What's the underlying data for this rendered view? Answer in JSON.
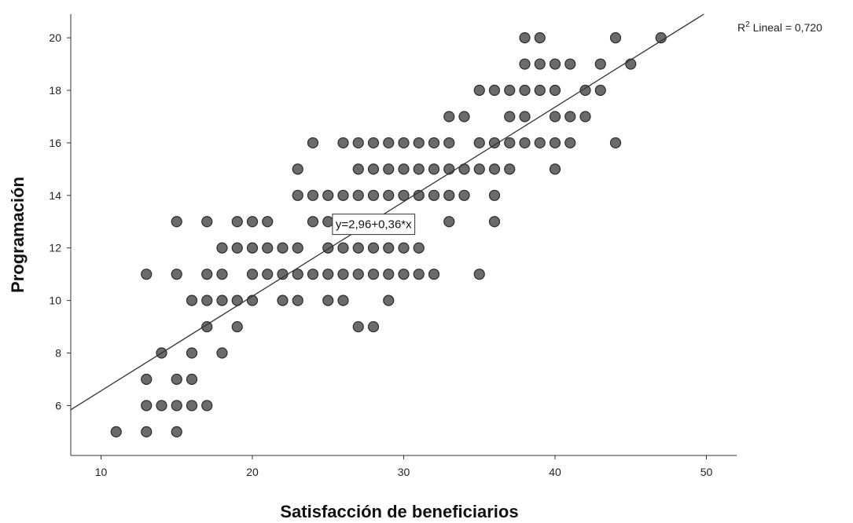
{
  "chart_data": {
    "type": "scatter",
    "title": "",
    "xlabel": "Satisfacción de beneficiarios",
    "ylabel": "Programación",
    "xlim": [
      8,
      52
    ],
    "ylim": [
      4.1,
      20.9
    ],
    "x_ticks": [
      10,
      20,
      30,
      40,
      50
    ],
    "y_ticks": [
      6,
      8,
      10,
      12,
      14,
      16,
      18,
      20
    ],
    "grid": false,
    "marker_color": "#6b6b6b",
    "marker_edge": "#2b2b2b",
    "fit_line": {
      "intercept": 2.96,
      "slope": 0.36,
      "equation_label": "y=2,96+0,36*x",
      "r2_prefix": "R",
      "r2_sup": "2",
      "r2_suffix": " Lineal = 0,720"
    },
    "points": [
      [
        11,
        5
      ],
      [
        13,
        5
      ],
      [
        15,
        5
      ],
      [
        13,
        6
      ],
      [
        14,
        6
      ],
      [
        15,
        6
      ],
      [
        16,
        6
      ],
      [
        17,
        6
      ],
      [
        13,
        7
      ],
      [
        15,
        7
      ],
      [
        16,
        7
      ],
      [
        14,
        8
      ],
      [
        16,
        8
      ],
      [
        18,
        8
      ],
      [
        17,
        9
      ],
      [
        19,
        9
      ],
      [
        27,
        9
      ],
      [
        28,
        9
      ],
      [
        16,
        10
      ],
      [
        17,
        10
      ],
      [
        18,
        10
      ],
      [
        19,
        10
      ],
      [
        20,
        10
      ],
      [
        22,
        10
      ],
      [
        23,
        10
      ],
      [
        25,
        10
      ],
      [
        26,
        10
      ],
      [
        29,
        10
      ],
      [
        13,
        11
      ],
      [
        15,
        11
      ],
      [
        17,
        11
      ],
      [
        18,
        11
      ],
      [
        20,
        11
      ],
      [
        21,
        11
      ],
      [
        22,
        11
      ],
      [
        23,
        11
      ],
      [
        24,
        11
      ],
      [
        25,
        11
      ],
      [
        26,
        11
      ],
      [
        27,
        11
      ],
      [
        28,
        11
      ],
      [
        29,
        11
      ],
      [
        30,
        11
      ],
      [
        31,
        11
      ],
      [
        32,
        11
      ],
      [
        35,
        11
      ],
      [
        18,
        12
      ],
      [
        19,
        12
      ],
      [
        20,
        12
      ],
      [
        21,
        12
      ],
      [
        22,
        12
      ],
      [
        23,
        12
      ],
      [
        25,
        12
      ],
      [
        26,
        12
      ],
      [
        27,
        12
      ],
      [
        28,
        12
      ],
      [
        29,
        12
      ],
      [
        30,
        12
      ],
      [
        31,
        12
      ],
      [
        15,
        13
      ],
      [
        17,
        13
      ],
      [
        19,
        13
      ],
      [
        20,
        13
      ],
      [
        21,
        13
      ],
      [
        24,
        13
      ],
      [
        25,
        13
      ],
      [
        28,
        13
      ],
      [
        33,
        13
      ],
      [
        36,
        13
      ],
      [
        23,
        14
      ],
      [
        24,
        14
      ],
      [
        25,
        14
      ],
      [
        26,
        14
      ],
      [
        27,
        14
      ],
      [
        28,
        14
      ],
      [
        29,
        14
      ],
      [
        30,
        14
      ],
      [
        31,
        14
      ],
      [
        32,
        14
      ],
      [
        33,
        14
      ],
      [
        34,
        14
      ],
      [
        36,
        14
      ],
      [
        23,
        15
      ],
      [
        27,
        15
      ],
      [
        28,
        15
      ],
      [
        29,
        15
      ],
      [
        30,
        15
      ],
      [
        31,
        15
      ],
      [
        32,
        15
      ],
      [
        33,
        15
      ],
      [
        34,
        15
      ],
      [
        35,
        15
      ],
      [
        36,
        15
      ],
      [
        37,
        15
      ],
      [
        40,
        15
      ],
      [
        24,
        16
      ],
      [
        26,
        16
      ],
      [
        27,
        16
      ],
      [
        28,
        16
      ],
      [
        29,
        16
      ],
      [
        30,
        16
      ],
      [
        31,
        16
      ],
      [
        32,
        16
      ],
      [
        33,
        16
      ],
      [
        35,
        16
      ],
      [
        36,
        16
      ],
      [
        37,
        16
      ],
      [
        38,
        16
      ],
      [
        39,
        16
      ],
      [
        40,
        16
      ],
      [
        41,
        16
      ],
      [
        44,
        16
      ],
      [
        33,
        17
      ],
      [
        34,
        17
      ],
      [
        37,
        17
      ],
      [
        38,
        17
      ],
      [
        40,
        17
      ],
      [
        41,
        17
      ],
      [
        42,
        17
      ],
      [
        35,
        18
      ],
      [
        36,
        18
      ],
      [
        37,
        18
      ],
      [
        38,
        18
      ],
      [
        39,
        18
      ],
      [
        40,
        18
      ],
      [
        42,
        18
      ],
      [
        43,
        18
      ],
      [
        38,
        19
      ],
      [
        39,
        19
      ],
      [
        40,
        19
      ],
      [
        41,
        19
      ],
      [
        43,
        19
      ],
      [
        45,
        19
      ],
      [
        38,
        20
      ],
      [
        39,
        20
      ],
      [
        44,
        20
      ],
      [
        47,
        20
      ]
    ]
  }
}
